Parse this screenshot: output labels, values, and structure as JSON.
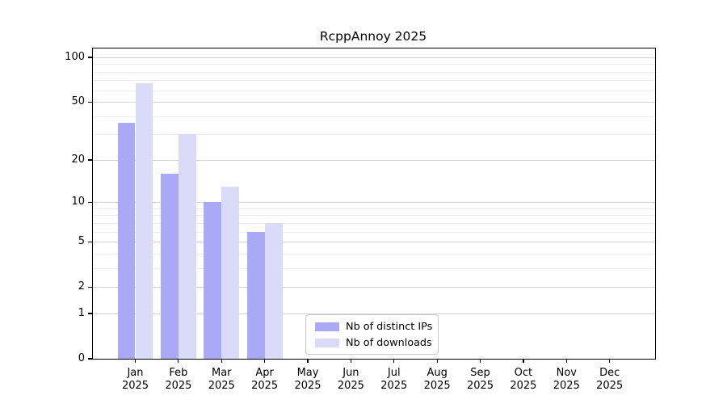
{
  "title": "RcppAnnoy 2025",
  "chart_data": {
    "type": "bar",
    "title": "RcppAnnoy 2025",
    "categories": [
      "Jan",
      "Feb",
      "Mar",
      "Apr",
      "May",
      "Jun",
      "Jul",
      "Aug",
      "Sep",
      "Oct",
      "Nov",
      "Dec"
    ],
    "category_year": "2025",
    "series": [
      {
        "name": "Nb of distinct IPs",
        "color": "#a9a9f5",
        "values": [
          36,
          16,
          10,
          6,
          0,
          0,
          0,
          0,
          0,
          0,
          0,
          0
        ]
      },
      {
        "name": "Nb of downloads",
        "color": "#dadaf9",
        "values": [
          67,
          30,
          13,
          7,
          0,
          0,
          0,
          0,
          0,
          0,
          0,
          0
        ]
      }
    ],
    "xlabel": "",
    "ylabel": "",
    "y_axis": {
      "scale": "log10(1+x)",
      "range": [
        0,
        101
      ],
      "tick_labels": [
        "0",
        "1",
        "2",
        "5",
        "10",
        "20",
        "50",
        "100"
      ],
      "tick_values": [
        0,
        1,
        2,
        5,
        10,
        20,
        50,
        100
      ],
      "minor_gridline_values": [
        3,
        4,
        6,
        7,
        8,
        9,
        30,
        40,
        60,
        70,
        80,
        90
      ]
    },
    "grid": true,
    "legend_position": "lower center-left inside plot"
  },
  "legend": {
    "items": [
      {
        "label": "Nb of distinct IPs",
        "color": "#a9a9f5"
      },
      {
        "label": "Nb of downloads",
        "color": "#dadaf9"
      }
    ]
  }
}
